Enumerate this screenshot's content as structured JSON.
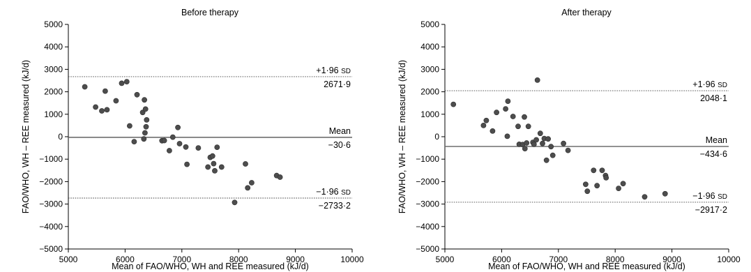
{
  "chart_data": [
    {
      "type": "scatter",
      "title": "Before therapy",
      "xlabel": "Mean of FAO/WHO, WH and REE measured (kJ/d)",
      "ylabel": "FAO/WHO, WH – REE measured (kJ/d)",
      "xlim": [
        5000,
        10000
      ],
      "ylim": [
        -5000,
        5000
      ],
      "xticks": [
        "5000",
        "6000",
        "7000",
        "8000",
        "9000",
        "10000"
      ],
      "yticks": [
        "5000",
        "4000",
        "3000",
        "2000",
        "1000",
        "0",
        "−1000",
        "−2000",
        "−3000",
        "−4000",
        "−5000"
      ],
      "grid": false,
      "lines": [
        {
          "kind": "upper",
          "label_main": "+1·96 ",
          "label_sd": "SD",
          "value_text": "2671·9",
          "y": 2671.9,
          "style": "dotted"
        },
        {
          "kind": "mean",
          "label_main": "Mean",
          "label_sd": "",
          "value_text": "−30·6",
          "y": -30.6,
          "style": "solid"
        },
        {
          "kind": "lower",
          "label_main": "−1·96 ",
          "label_sd": "SD",
          "value_text": "−2733·2",
          "y": -2733.2,
          "style": "dotted"
        }
      ],
      "points": [
        [
          5290,
          2220
        ],
        [
          5480,
          1320
        ],
        [
          5590,
          1150
        ],
        [
          5650,
          2030
        ],
        [
          5680,
          1200
        ],
        [
          5840,
          1600
        ],
        [
          5940,
          2380
        ],
        [
          6030,
          2450
        ],
        [
          6080,
          480
        ],
        [
          6160,
          -220
        ],
        [
          6210,
          1870
        ],
        [
          6310,
          1080
        ],
        [
          6330,
          -100
        ],
        [
          6350,
          170
        ],
        [
          6340,
          1640
        ],
        [
          6360,
          1230
        ],
        [
          6370,
          440
        ],
        [
          6380,
          750
        ],
        [
          6650,
          -180
        ],
        [
          6690,
          -170
        ],
        [
          6780,
          -620
        ],
        [
          6840,
          -20
        ],
        [
          6930,
          410
        ],
        [
          6960,
          -310
        ],
        [
          7070,
          -460
        ],
        [
          7090,
          -1230
        ],
        [
          7290,
          -500
        ],
        [
          7460,
          -1350
        ],
        [
          7500,
          -920
        ],
        [
          7540,
          -860
        ],
        [
          7560,
          -1200
        ],
        [
          7580,
          -1520
        ],
        [
          7620,
          -470
        ],
        [
          7700,
          -1350
        ],
        [
          7930,
          -2930
        ],
        [
          8120,
          -1210
        ],
        [
          8160,
          -2280
        ],
        [
          8230,
          -2050
        ],
        [
          8670,
          -1730
        ],
        [
          8730,
          -1800
        ]
      ]
    },
    {
      "type": "scatter",
      "title": "After therapy",
      "xlabel": "Mean of FAO/WHO, WH and REE measured (kJ/d)",
      "ylabel": "FAO/WHO, WH – REE measured (kJ/d)",
      "xlim": [
        5000,
        10000
      ],
      "ylim": [
        -5000,
        5000
      ],
      "xticks": [
        "5000",
        "6000",
        "7000",
        "8000",
        "9000",
        "10000"
      ],
      "yticks": [
        "5000",
        "4000",
        "3000",
        "2000",
        "1000",
        "0",
        "−1000",
        "−2000",
        "−3000",
        "−4000",
        "−5000"
      ],
      "grid": false,
      "lines": [
        {
          "kind": "upper",
          "label_main": "+1·96 ",
          "label_sd": "SD",
          "value_text": "2048·1",
          "y": 2048.1,
          "style": "dotted"
        },
        {
          "kind": "mean",
          "label_main": "Mean",
          "label_sd": "",
          "value_text": "−434·6",
          "y": -434.6,
          "style": "solid"
        },
        {
          "kind": "lower",
          "label_main": "−1·96 ",
          "label_sd": "SD",
          "value_text": "−2917·2",
          "y": -2917.2,
          "style": "dotted"
        }
      ],
      "points": [
        [
          5150,
          1440
        ],
        [
          5680,
          500
        ],
        [
          5730,
          720
        ],
        [
          5840,
          250
        ],
        [
          5910,
          1080
        ],
        [
          6070,
          1240
        ],
        [
          6100,
          20
        ],
        [
          6110,
          1580
        ],
        [
          6200,
          900
        ],
        [
          6290,
          460
        ],
        [
          6310,
          -340
        ],
        [
          6370,
          -350
        ],
        [
          6400,
          880
        ],
        [
          6410,
          -530
        ],
        [
          6440,
          -280
        ],
        [
          6470,
          460
        ],
        [
          6550,
          -250
        ],
        [
          6570,
          -340
        ],
        [
          6610,
          -140
        ],
        [
          6630,
          2520
        ],
        [
          6680,
          150
        ],
        [
          6720,
          -300
        ],
        [
          6750,
          -80
        ],
        [
          6790,
          -1050
        ],
        [
          6820,
          -100
        ],
        [
          6870,
          -440
        ],
        [
          6900,
          -830
        ],
        [
          7090,
          -300
        ],
        [
          7170,
          -610
        ],
        [
          7480,
          -2120
        ],
        [
          7510,
          -2430
        ],
        [
          7620,
          -1500
        ],
        [
          7680,
          -2180
        ],
        [
          7770,
          -1500
        ],
        [
          7830,
          -1730
        ],
        [
          7840,
          -1830
        ],
        [
          8060,
          -2300
        ],
        [
          8140,
          -2090
        ],
        [
          8520,
          -2680
        ],
        [
          8880,
          -2540
        ]
      ]
    }
  ]
}
